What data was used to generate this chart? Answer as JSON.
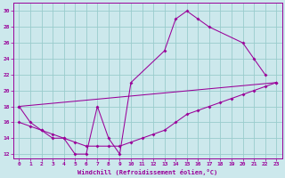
{
  "xlabel": "Windchill (Refroidissement éolien,°C)",
  "bg_color": "#cce8ec",
  "line_color": "#990099",
  "grid_color": "#99cccc",
  "xlim": [
    -0.5,
    23.5
  ],
  "ylim": [
    11.5,
    31
  ],
  "xticks": [
    0,
    1,
    2,
    3,
    4,
    5,
    6,
    7,
    8,
    9,
    10,
    11,
    12,
    13,
    14,
    15,
    16,
    17,
    18,
    19,
    20,
    21,
    22,
    23
  ],
  "yticks": [
    12,
    14,
    16,
    18,
    20,
    22,
    24,
    26,
    28,
    30
  ],
  "line1_x": [
    0,
    1,
    2,
    3,
    4,
    5,
    6,
    7,
    8,
    9,
    10,
    13,
    14,
    15,
    16,
    17,
    20,
    21,
    22
  ],
  "line1_y": [
    18,
    16,
    15,
    14,
    14,
    12,
    12,
    18,
    14,
    12,
    21,
    25,
    29,
    30,
    29,
    28,
    26,
    24,
    22
  ],
  "line2_x": [
    0,
    23
  ],
  "line2_y": [
    18,
    21
  ],
  "line3_x": [
    0,
    1,
    2,
    3,
    4,
    5,
    6,
    7,
    8,
    9,
    10,
    11,
    12,
    13,
    14,
    15,
    16,
    17,
    18,
    19,
    20,
    21,
    22,
    23
  ],
  "line3_y": [
    16,
    15.5,
    15,
    14.5,
    14,
    13.5,
    13,
    13,
    13,
    13,
    13.5,
    14,
    14.5,
    15,
    16,
    17,
    17.5,
    18,
    18.5,
    19,
    19.5,
    20,
    20.5,
    21
  ]
}
